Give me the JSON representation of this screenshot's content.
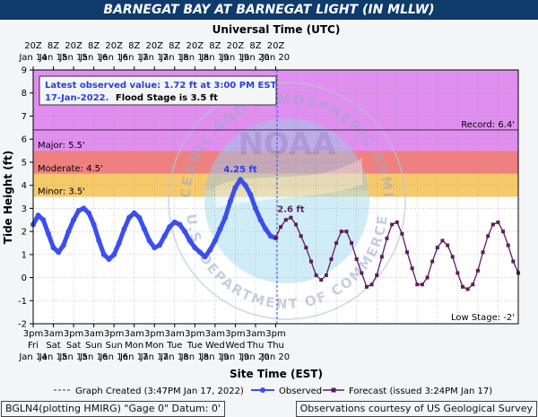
{
  "header": {
    "title": "BARNEGAT BAY AT BARNEGAT LIGHT (IN MLLW)"
  },
  "chart_data": {
    "type": "line",
    "title": "BARNEGAT BAY AT BARNEGAT LIGHT (IN MLLW)",
    "top_axis_label": "Universal Time (UTC)",
    "xlabel": "Site Time (EST)",
    "ylabel": "Tide Height (ft)",
    "ylim": [
      -2,
      9
    ],
    "y_ticks": [
      -2,
      -1,
      0,
      1,
      2,
      3,
      4,
      5,
      6,
      7,
      8,
      9
    ],
    "x_range_hours": [
      0,
      144
    ],
    "x_tick_step_hours": 12,
    "top_ticks": [
      {
        "time": "20Z",
        "date": "Jan 14"
      },
      {
        "time": "8Z",
        "date": "Jan 15"
      },
      {
        "time": "20Z",
        "date": "Jan 15"
      },
      {
        "time": "8Z",
        "date": "Jan 16"
      },
      {
        "time": "20Z",
        "date": "Jan 16"
      },
      {
        "time": "8Z",
        "date": "Jan 17"
      },
      {
        "time": "20Z",
        "date": "Jan 17"
      },
      {
        "time": "8Z",
        "date": "Jan 18"
      },
      {
        "time": "20Z",
        "date": "Jan 18"
      },
      {
        "time": "8Z",
        "date": "Jan 19"
      },
      {
        "time": "20Z",
        "date": "Jan 19"
      },
      {
        "time": "8Z",
        "date": "Jan 20"
      },
      {
        "time": "20Z",
        "date": "Jan 20"
      }
    ],
    "bottom_ticks": [
      {
        "time": "3pm",
        "day": "Fri",
        "date": "Jan 14"
      },
      {
        "time": "3am",
        "day": "Sat",
        "date": "Jan 15"
      },
      {
        "time": "3pm",
        "day": "Sat",
        "date": "Jan 15"
      },
      {
        "time": "3am",
        "day": "Sun",
        "date": "Jan 16"
      },
      {
        "time": "3pm",
        "day": "Sun",
        "date": "Jan 16"
      },
      {
        "time": "3am",
        "day": "Mon",
        "date": "Jan 17"
      },
      {
        "time": "3pm",
        "day": "Mon",
        "date": "Jan 17"
      },
      {
        "time": "3am",
        "day": "Tue",
        "date": "Jan 18"
      },
      {
        "time": "3pm",
        "day": "Tue",
        "date": "Jan 18"
      },
      {
        "time": "3am",
        "day": "Wed",
        "date": "Jan 19"
      },
      {
        "time": "3pm",
        "day": "Wed",
        "date": "Jan 19"
      },
      {
        "time": "3am",
        "day": "Thu",
        "date": "Jan 20"
      },
      {
        "time": "3pm",
        "day": "Thu",
        "date": "Jan 20"
      }
    ],
    "bands": [
      {
        "name": "Minor",
        "from": 3.5,
        "to": 4.5,
        "color": "#f6c96a",
        "label": "Minor: 3.5'"
      },
      {
        "name": "Moderate",
        "from": 4.5,
        "to": 5.5,
        "color": "#f08080",
        "label": "Moderate: 4.5'"
      },
      {
        "name": "Major",
        "from": 5.5,
        "to": 9,
        "color": "#e08ef0",
        "label": "Major: 5.5'"
      }
    ],
    "reference_lines": [
      {
        "name": "Record",
        "value": 6.4,
        "label": "Record: 6.4'"
      },
      {
        "name": "Low Stage",
        "value": -2,
        "label": "Low Stage: -2'"
      }
    ],
    "annotations": {
      "latest_line1": "Latest observed value: 1.72 ft at 3:00 PM EST",
      "latest_date": "17-Jan-2022.",
      "flood_stage": "Flood Stage is 3.5 ft",
      "peak_label": "4.25 ft",
      "peak_value": 4.25,
      "forecast_peak_label": "2.6 ft",
      "forecast_peak_value": 2.6
    },
    "graph_created_hours": 0.8,
    "series": [
      {
        "name": "Observed",
        "color": "#3b4ff0",
        "x": [
          0,
          3,
          6,
          9,
          12,
          15,
          18,
          21,
          24,
          27,
          30,
          33,
          36,
          39,
          42,
          45,
          48,
          51,
          54,
          57,
          60,
          63,
          66,
          69,
          72,
          75,
          78,
          81,
          84,
          87,
          90,
          93,
          96,
          99,
          102,
          105,
          108,
          111,
          114,
          117,
          120,
          123,
          126,
          129,
          132,
          135,
          138,
          141,
          144
        ],
        "values": [
          2.3,
          2.7,
          2.5,
          1.9,
          1.3,
          1.1,
          1.4,
          2.0,
          2.5,
          2.9,
          3.0,
          2.8,
          2.3,
          1.6,
          1.0,
          0.8,
          1.0,
          1.5,
          2.1,
          2.6,
          2.8,
          2.6,
          2.1,
          1.6,
          1.3,
          1.4,
          1.8,
          2.2,
          2.4,
          2.3,
          2.0,
          1.6,
          1.3,
          1.1,
          0.9,
          1.2,
          1.6,
          2.1,
          2.6,
          3.3,
          3.9,
          4.25,
          4.0,
          3.6,
          3.0,
          2.5,
          2.1,
          1.8,
          1.72
        ]
      },
      {
        "name": "Forecast",
        "color": "#5b1e5e",
        "x": [
          144,
          147,
          150,
          153,
          156,
          159,
          162,
          165,
          168,
          171,
          174,
          177,
          180,
          183,
          186,
          189,
          192,
          195,
          198,
          201,
          204,
          207,
          210,
          213,
          216,
          219,
          222,
          225,
          228,
          231,
          234,
          237,
          240,
          243,
          246,
          249,
          252,
          255,
          258,
          261,
          264,
          267,
          270,
          273,
          276,
          279,
          282,
          285,
          288
        ],
        "values": [
          1.72,
          2.2,
          2.5,
          2.6,
          2.3,
          1.8,
          1.3,
          0.7,
          0.1,
          -0.1,
          0.1,
          0.8,
          1.5,
          2.0,
          2.0,
          1.5,
          0.8,
          0.2,
          -0.4,
          -0.3,
          0.1,
          0.9,
          1.7,
          2.3,
          2.4,
          1.9,
          1.1,
          0.4,
          -0.3,
          -0.3,
          0.0,
          0.7,
          1.3,
          1.6,
          1.4,
          0.9,
          0.2,
          -0.4,
          -0.5,
          -0.3,
          0.3,
          1.1,
          1.8,
          2.3,
          2.4,
          2.0,
          1.4,
          0.7,
          0.2
        ]
      }
    ]
  },
  "legend": {
    "graph_created": "Graph Created (3:47PM Jan 17, 2022)",
    "observed": "Observed",
    "forecast": "Forecast (issued 3:24PM Jan 17)"
  },
  "footer": {
    "left": "BGLN4(plotting HMIRG) \"Gage 0\" Datum: 0'",
    "right": "Observations courtesy of US Geological Survey"
  },
  "watermark": {
    "center": "NOAA",
    "top_arc": "NATIONAL OCEANIC AND ATMOSPHERIC ADMINISTRATION",
    "bottom_arc": "U.S. DEPARTMENT OF COMMERCE"
  }
}
